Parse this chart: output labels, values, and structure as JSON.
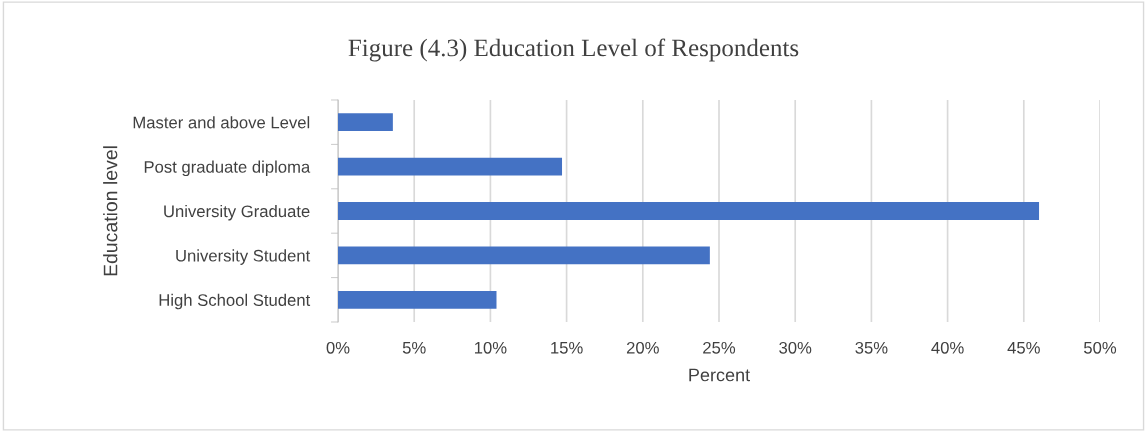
{
  "chart_data": {
    "type": "bar",
    "orientation": "horizontal",
    "title": "Figure (4.3) Education Level of Respondents",
    "xlabel": "Percent",
    "ylabel": "Education level",
    "categories": [
      "Master and above Level",
      "Post graduate diploma",
      "University Graduate",
      "University Student",
      "High School Student"
    ],
    "values": [
      3.6,
      14.7,
      46.0,
      24.4,
      10.4
    ],
    "color": "#4472c4",
    "xlim": [
      0,
      50
    ],
    "xticks": [
      {
        "value": 0,
        "label": "0%"
      },
      {
        "value": 5,
        "label": "5%"
      },
      {
        "value": 10,
        "label": "10%"
      },
      {
        "value": 15,
        "label": "15%"
      },
      {
        "value": 20,
        "label": "20%"
      },
      {
        "value": 25,
        "label": "25%"
      },
      {
        "value": 30,
        "label": "30%"
      },
      {
        "value": 35,
        "label": "35%"
      },
      {
        "value": 40,
        "label": "40%"
      },
      {
        "value": 45,
        "label": "45%"
      },
      {
        "value": 50,
        "label": "50%"
      }
    ],
    "grid": "x"
  }
}
